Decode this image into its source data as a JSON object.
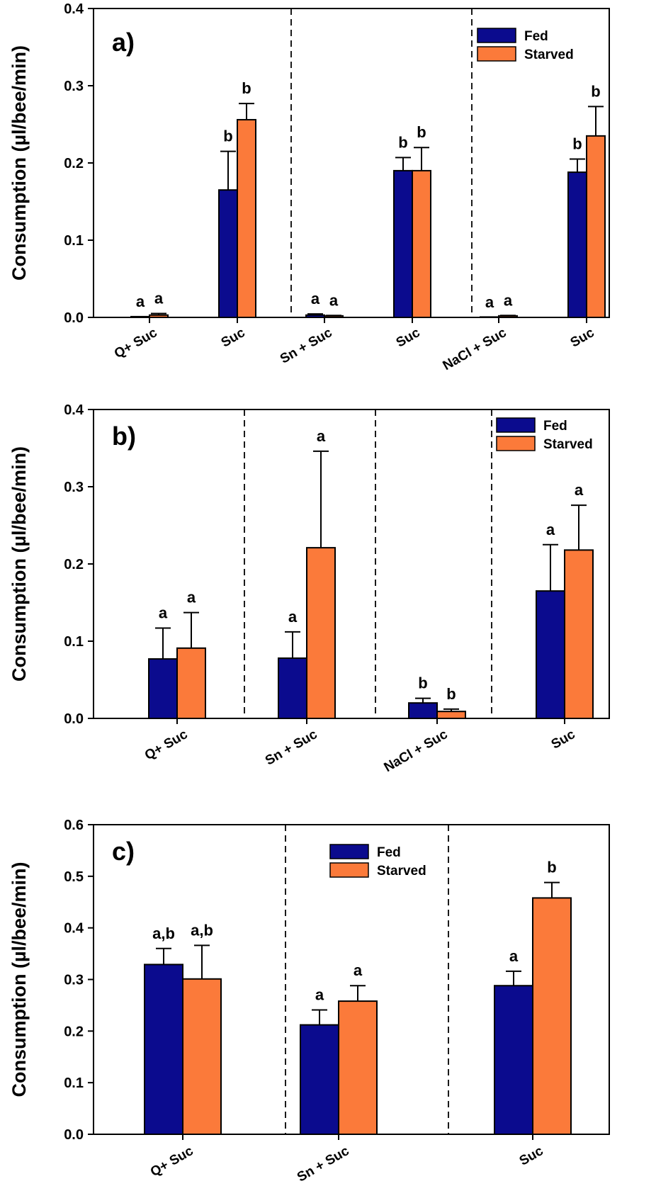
{
  "colors": {
    "fed": "#0b0b8e",
    "starved": "#fb7a3a",
    "axis": "#000000"
  },
  "chart_data": [
    {
      "type": "bar",
      "panel_label": "a)",
      "ylabel": "Consumption (µl/bee/min)",
      "ylim": [
        0,
        0.4
      ],
      "yticks": [
        "0.0",
        "0.1",
        "0.2",
        "0.3",
        "0.4"
      ],
      "categories": [
        "Q+ Suc",
        "Suc",
        "Sn + Suc",
        "Suc",
        "NaCl + Suc",
        "Suc"
      ],
      "legend": {
        "position": "top-right",
        "entries": [
          "Fed",
          "Starved"
        ]
      },
      "group_dividers_after": [
        1,
        3
      ],
      "series": [
        {
          "name": "Fed",
          "values": [
            0.001,
            0.165,
            0.003,
            0.19,
            0.0,
            0.188
          ],
          "errors": [
            0.0,
            0.05,
            0.0015,
            0.017,
            0.0,
            0.017
          ],
          "sig": [
            "a",
            "b",
            "a",
            "b",
            "a",
            "b"
          ]
        },
        {
          "name": "Starved",
          "values": [
            0.003,
            0.256,
            0.002,
            0.19,
            0.002,
            0.235
          ],
          "errors": [
            0.002,
            0.021,
            0.0005,
            0.03,
            0.0005,
            0.038
          ],
          "sig": [
            "a",
            "b",
            "a",
            "b",
            "a",
            "b"
          ]
        }
      ]
    },
    {
      "type": "bar",
      "panel_label": "b)",
      "ylabel": "Consumption (µl/bee/min)",
      "ylim": [
        0,
        0.4
      ],
      "yticks": [
        "0.0",
        "0.1",
        "0.2",
        "0.3",
        "0.4"
      ],
      "categories": [
        "Q+ Suc",
        "Sn + Suc",
        "NaCl + Suc",
        "Suc"
      ],
      "legend": {
        "position": "top-right",
        "entries": [
          "Fed",
          "Starved"
        ]
      },
      "group_dividers_after": [
        0,
        1,
        2
      ],
      "series": [
        {
          "name": "Fed",
          "values": [
            0.077,
            0.078,
            0.02,
            0.165
          ],
          "errors": [
            0.04,
            0.034,
            0.006,
            0.06
          ],
          "sig": [
            "a",
            "a",
            "b",
            "a"
          ]
        },
        {
          "name": "Starved",
          "values": [
            0.091,
            0.221,
            0.009,
            0.218
          ],
          "errors": [
            0.046,
            0.125,
            0.003,
            0.058
          ],
          "sig": [
            "a",
            "a",
            "b",
            "a"
          ]
        }
      ]
    },
    {
      "type": "bar",
      "panel_label": "c)",
      "ylabel": "Consumption (µl/bee/min)",
      "ylim": [
        0,
        0.6
      ],
      "yticks": [
        "0.0",
        "0.1",
        "0.2",
        "0.3",
        "0.4",
        "0.5",
        "0.6"
      ],
      "categories": [
        "Q+ Suc",
        "Sn + Suc",
        "Suc"
      ],
      "legend": {
        "position": "top-center",
        "entries": [
          "Fed",
          "Starved"
        ]
      },
      "group_dividers_after": [
        0,
        1
      ],
      "series": [
        {
          "name": "Fed",
          "values": [
            0.329,
            0.212,
            0.288
          ],
          "errors": [
            0.031,
            0.029,
            0.028
          ],
          "sig": [
            "a,b",
            "a",
            "a"
          ]
        },
        {
          "name": "Starved",
          "values": [
            0.301,
            0.258,
            0.458
          ],
          "errors": [
            0.065,
            0.03,
            0.03
          ],
          "sig": [
            "a,b",
            "a",
            "b"
          ]
        }
      ]
    }
  ]
}
